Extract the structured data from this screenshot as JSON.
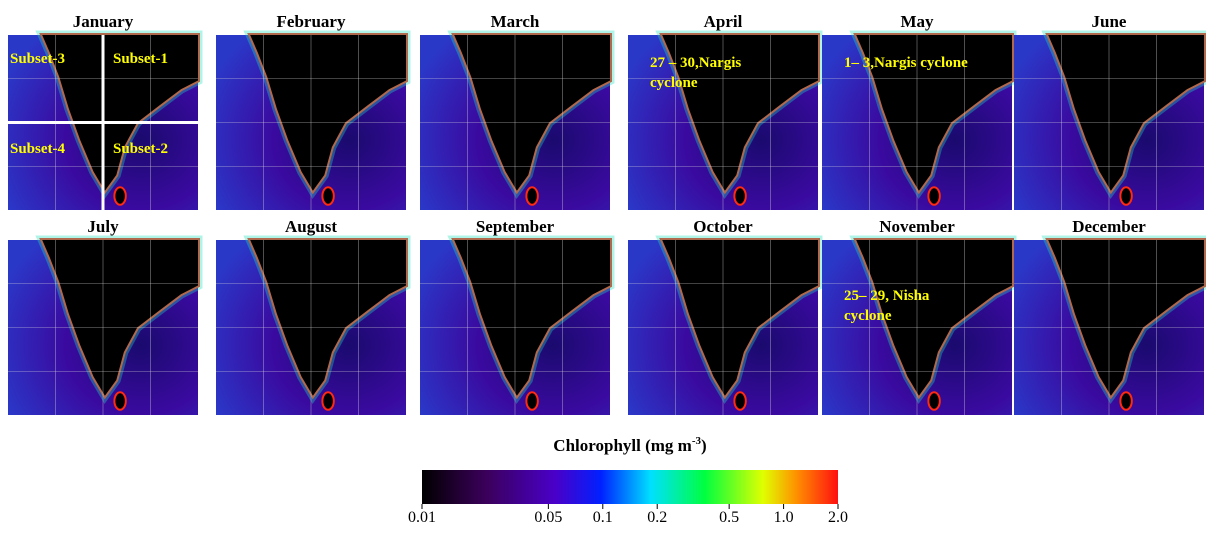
{
  "panels": [
    {
      "month": "January",
      "annotations": [
        "Subset-3",
        "Subset-1",
        "Subset-4",
        "Subset-2"
      ]
    },
    {
      "month": "February",
      "annotations": []
    },
    {
      "month": "March",
      "annotations": []
    },
    {
      "month": "April",
      "annotations": [
        "27 – 30,Nargis",
        "cyclone"
      ]
    },
    {
      "month": "May",
      "annotations": [
        "1– 3,Nargis cyclone"
      ]
    },
    {
      "month": "June",
      "annotations": []
    },
    {
      "month": "July",
      "annotations": []
    },
    {
      "month": "August",
      "annotations": []
    },
    {
      "month": "September",
      "annotations": []
    },
    {
      "month": "October",
      "annotations": []
    },
    {
      "month": "November",
      "annotations": [
        "25– 29, Nisha",
        "cyclone"
      ]
    },
    {
      "month": "December",
      "annotations": []
    }
  ],
  "colorbar": {
    "title": "Chlorophyll (mg m",
    "title_superscript": "-3",
    "title_end": ")",
    "scale": "log",
    "range": [
      0.01,
      2.0
    ],
    "ticks": [
      0.01,
      0.05,
      0.1,
      0.2,
      0.5,
      {
        "value": 1,
        "label": "1.0"
      },
      {
        "value": 2,
        "label": "2.0"
      }
    ]
  }
}
